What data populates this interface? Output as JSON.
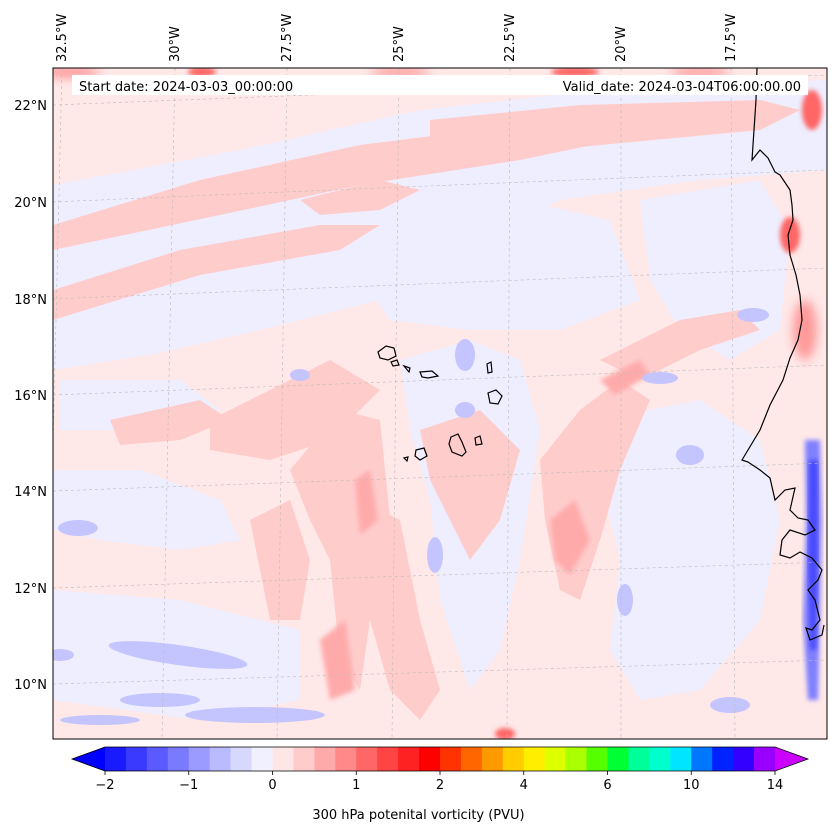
{
  "map": {
    "start_date": "Start date: 2024-03-03_00:00:00",
    "valid_date": "Valid_date: 2024-03-04T06:00:00.00",
    "lon_labels": [
      "32.5°W",
      "30°W",
      "27.5°W",
      "25°W",
      "22.5°W",
      "20°W",
      "17.5°W"
    ],
    "lat_labels": [
      "22°N",
      "20°N",
      "18°N",
      "16°N",
      "14°N",
      "12°N",
      "10°N"
    ],
    "islands": [
      "cape-verde-islands"
    ],
    "coastline": "west-africa"
  },
  "colorbar": {
    "label": "300 hPa potenital vorticity (PVU)",
    "tick_labels": [
      "−2",
      "−1",
      "0",
      "1",
      "2",
      "4",
      "6",
      "10",
      "14"
    ],
    "colors": [
      "#1a1aff",
      "#3a3aff",
      "#5a5aff",
      "#7a7aff",
      "#9a9aff",
      "#babaff",
      "#d8d8ff",
      "#f0f0ff",
      "#ffe6e6",
      "#ffcccc",
      "#ffaaaa",
      "#ff8888",
      "#ff6666",
      "#ff4444",
      "#ff2222",
      "#ff0000",
      "#ff3300",
      "#ff6600",
      "#ff9900",
      "#ffcc00",
      "#ffee00",
      "#ddff00",
      "#aaff00",
      "#55ff00",
      "#00ff33",
      "#00ff99",
      "#00ffcc",
      "#00e5ff",
      "#0077ff",
      "#0022ff",
      "#3300ff",
      "#9900ff"
    ],
    "under_color": "#0000ff",
    "over_color": "#cc00ff"
  }
}
